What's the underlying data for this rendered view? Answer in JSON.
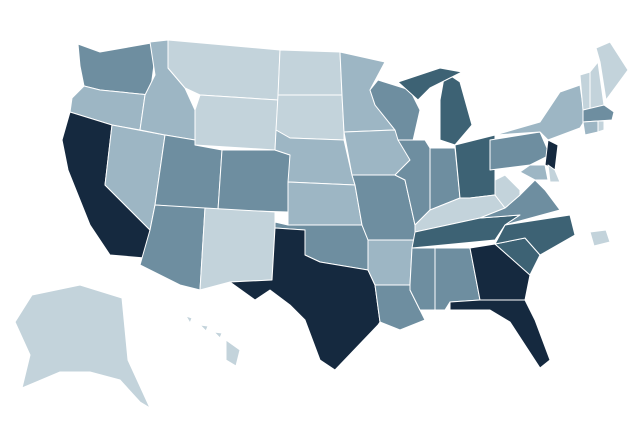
{
  "map": {
    "type": "choropleth",
    "region": "United States",
    "color_scale": {
      "1": "#c3d3db",
      "2": "#9db6c4",
      "3": "#6e8ea0",
      "4": "#3d6274",
      "5": "#15293f"
    },
    "background": "#ffffff",
    "border_color": "#ffffff",
    "states": [
      {
        "id": "WA",
        "level": 3
      },
      {
        "id": "OR",
        "level": 2
      },
      {
        "id": "CA",
        "level": 5
      },
      {
        "id": "NV",
        "level": 2
      },
      {
        "id": "ID",
        "level": 2
      },
      {
        "id": "MT",
        "level": 1
      },
      {
        "id": "WY",
        "level": 1
      },
      {
        "id": "UT",
        "level": 3
      },
      {
        "id": "CO",
        "level": 3
      },
      {
        "id": "AZ",
        "level": 3
      },
      {
        "id": "NM",
        "level": 1
      },
      {
        "id": "ND",
        "level": 1
      },
      {
        "id": "SD",
        "level": 1
      },
      {
        "id": "NE",
        "level": 2
      },
      {
        "id": "KS",
        "level": 2
      },
      {
        "id": "OK",
        "level": 3
      },
      {
        "id": "TX",
        "level": 5
      },
      {
        "id": "MN",
        "level": 2
      },
      {
        "id": "IA",
        "level": 2
      },
      {
        "id": "MO",
        "level": 3
      },
      {
        "id": "AR",
        "level": 2
      },
      {
        "id": "LA",
        "level": 3
      },
      {
        "id": "WI",
        "level": 3
      },
      {
        "id": "IL",
        "level": 3
      },
      {
        "id": "MI",
        "level": 4
      },
      {
        "id": "IN",
        "level": 3
      },
      {
        "id": "OH",
        "level": 4
      },
      {
        "id": "KY",
        "level": 1
      },
      {
        "id": "TN",
        "level": 4
      },
      {
        "id": "MS",
        "level": 3
      },
      {
        "id": "AL",
        "level": 3
      },
      {
        "id": "GA",
        "level": 5
      },
      {
        "id": "FL",
        "level": 5
      },
      {
        "id": "SC",
        "level": 4
      },
      {
        "id": "NC",
        "level": 4
      },
      {
        "id": "VA",
        "level": 3
      },
      {
        "id": "WV",
        "level": 1
      },
      {
        "id": "PA",
        "level": 3
      },
      {
        "id": "NY",
        "level": 2
      },
      {
        "id": "NJ",
        "level": 5
      },
      {
        "id": "MD",
        "level": 2
      },
      {
        "id": "DE",
        "level": 1
      },
      {
        "id": "VT",
        "level": 1
      },
      {
        "id": "NH",
        "level": 1
      },
      {
        "id": "ME",
        "level": 1
      },
      {
        "id": "MA",
        "level": 3
      },
      {
        "id": "CT",
        "level": 2
      },
      {
        "id": "RI",
        "level": 1
      },
      {
        "id": "AK",
        "level": 1
      },
      {
        "id": "HI",
        "level": 1
      },
      {
        "id": "PR",
        "level": 1
      }
    ]
  }
}
